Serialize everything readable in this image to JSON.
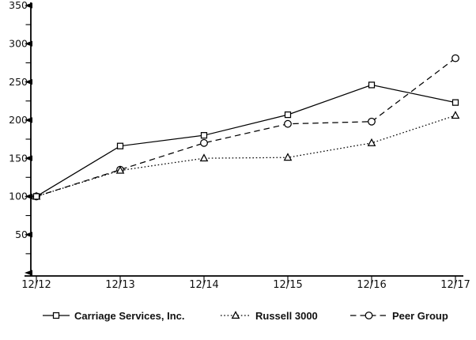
{
  "chart_data": {
    "type": "line",
    "title": "",
    "categories": [
      "12/12",
      "12/13",
      "12/14",
      "12/15",
      "12/16",
      "12/17"
    ],
    "series": [
      {
        "name": "Carriage Services, Inc.",
        "values": [
          100,
          166,
          180,
          207,
          246,
          223
        ],
        "line_style": "solid",
        "marker": "square"
      },
      {
        "name": "Russell 3000",
        "values": [
          100,
          134,
          150,
          151,
          170,
          206
        ],
        "line_style": "dotted",
        "marker": "triangle"
      },
      {
        "name": "Peer Group",
        "values": [
          100,
          135,
          170,
          195,
          198,
          281
        ],
        "line_style": "dashed",
        "marker": "circle"
      }
    ],
    "y_axis": {
      "min": 0,
      "max": 350,
      "major_tick_interval": 50,
      "minor_tick_interval": 25,
      "tick_labels": [
        "50",
        "100",
        "150",
        "200",
        "250",
        "300",
        "350"
      ]
    },
    "x_axis": {
      "tick_labels": [
        "12/12",
        "12/13",
        "12/14",
        "12/15",
        "12/16",
        "12/17"
      ]
    },
    "grid": false,
    "legend_position": "bottom",
    "colors": {
      "line": "#000000",
      "text": "#111111",
      "background": "#ffffff",
      "marker_fill": "#ffffff"
    }
  }
}
